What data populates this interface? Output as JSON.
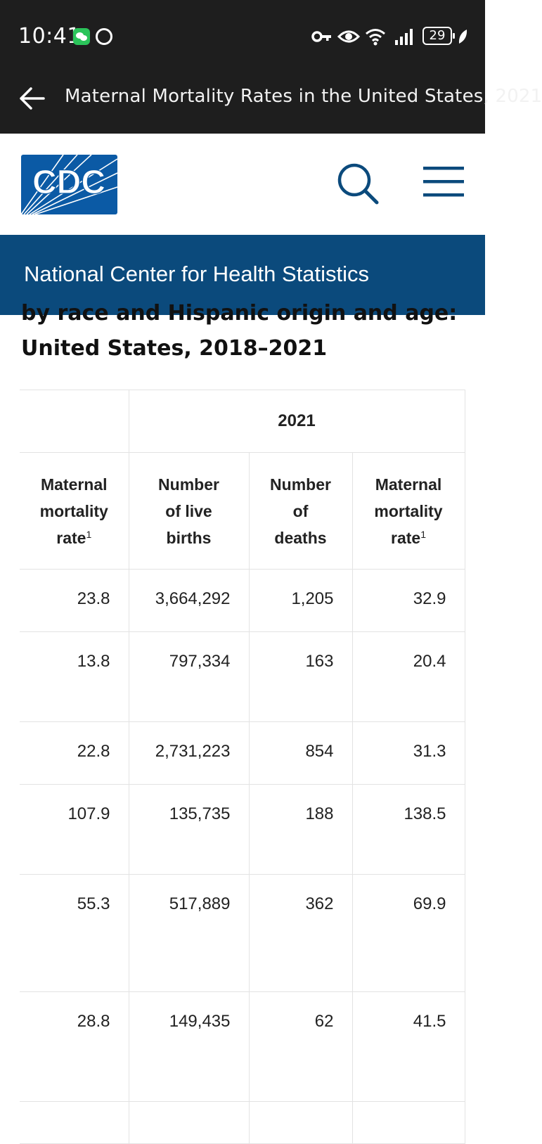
{
  "status_bar": {
    "time": "10:41",
    "notif_badge": "",
    "battery": "29",
    "icons": [
      "wechat-icon",
      "key-icon",
      "eye-icon",
      "wifi-icon",
      "signal-icon",
      "battery-icon",
      "leaf-icon"
    ]
  },
  "app_bar": {
    "title": "Maternal Mortality Rates in the United States, 2021"
  },
  "header": {
    "logo_text": "CDC",
    "brand_color": "#0b5aa5"
  },
  "banner": {
    "text": "National Center for Health Statistics",
    "color": "#0b4a7c"
  },
  "content": {
    "subtitle_partial": "by race and Hispanic origin and age:",
    "subtitle": "United States, 2018–2021"
  },
  "table": {
    "year": "2021",
    "col0_header": [
      "Maternal",
      "mortality",
      "rate"
    ],
    "headers": [
      [
        "Number",
        "of live",
        "births"
      ],
      [
        "Number",
        "of",
        "deaths"
      ],
      [
        "Maternal",
        "mortality",
        "rate"
      ]
    ],
    "footnote_mark": "1",
    "rows": [
      [
        "23.8",
        "3,664,292",
        "1,205",
        "32.9"
      ],
      [
        "13.8",
        "797,334",
        "163",
        "20.4"
      ],
      [
        "22.8",
        "2,731,223",
        "854",
        "31.3"
      ],
      [
        "107.9",
        "135,735",
        "188",
        "138.5"
      ],
      [
        "55.3",
        "517,889",
        "362",
        "69.9"
      ],
      [
        "28.8",
        "149,435",
        "62",
        "41.5"
      ]
    ]
  }
}
